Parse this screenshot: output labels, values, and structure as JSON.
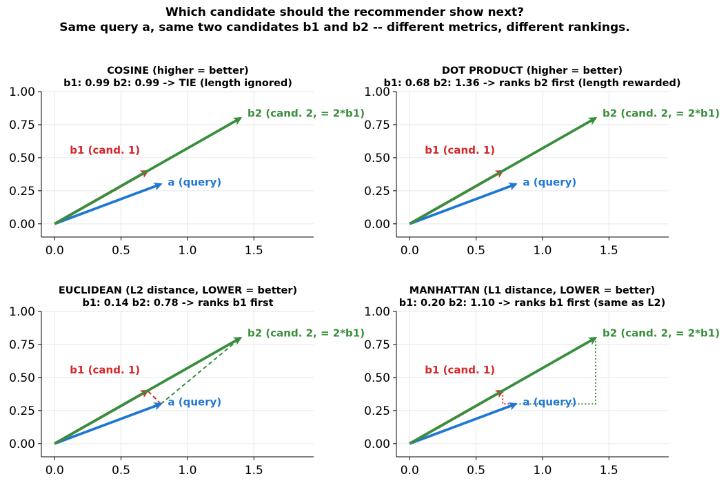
{
  "figure": {
    "suptitle_line1": "Which candidate should the recommender show next?",
    "suptitle_line2": "Same query a, same two candidates b1 and b2 -- different metrics, different rankings."
  },
  "colors": {
    "query": "#1f77d4",
    "b1": "#d62728",
    "b2": "#388e3c",
    "grid": "#e6e6e6",
    "axis": "#000000"
  },
  "chart_data": [
    {
      "type": "line",
      "title_line1": "COSINE   (higher = better)",
      "title_line2": "b1: 0.99    b2: 0.99    ->   TIE  (length ignored)",
      "xlim": [
        -0.1,
        1.95
      ],
      "ylim": [
        -0.1,
        1.0
      ],
      "xticks": [
        "0.0",
        "0.5",
        "1.0",
        "1.5"
      ],
      "xtick_values": [
        0,
        0.5,
        1.0,
        1.5
      ],
      "yticks": [
        "0.00",
        "0.25",
        "0.50",
        "0.75",
        "1.00"
      ],
      "ytick_values": [
        0,
        0.25,
        0.5,
        0.75,
        1.0
      ],
      "grid": true,
      "vectors": [
        {
          "name": "a",
          "label": "a  (query)",
          "x": 0.8,
          "y": 0.3,
          "color_key": "query"
        },
        {
          "name": "b1",
          "label": "b1  (cand. 1)",
          "x": 0.7,
          "y": 0.4,
          "color_key": "b1"
        },
        {
          "name": "b2",
          "label": "b2  (cand. 2, = 2*b1)",
          "x": 1.4,
          "y": 0.8,
          "color_key": "b2"
        }
      ],
      "overlays": []
    },
    {
      "type": "line",
      "title_line1": "DOT PRODUCT   (higher = better)",
      "title_line2": "b1: 0.68    b2: 1.36    ->   ranks b2 first  (length rewarded)",
      "xlim": [
        -0.1,
        1.95
      ],
      "ylim": [
        -0.1,
        1.0
      ],
      "xticks": [
        "0.0",
        "0.5",
        "1.0",
        "1.5"
      ],
      "xtick_values": [
        0,
        0.5,
        1.0,
        1.5
      ],
      "yticks": [
        "0.00",
        "0.25",
        "0.50",
        "0.75",
        "1.00"
      ],
      "ytick_values": [
        0,
        0.25,
        0.5,
        0.75,
        1.0
      ],
      "grid": true,
      "vectors": [
        {
          "name": "a",
          "label": "a  (query)",
          "x": 0.8,
          "y": 0.3,
          "color_key": "query"
        },
        {
          "name": "b1",
          "label": "b1  (cand. 1)",
          "x": 0.7,
          "y": 0.4,
          "color_key": "b1"
        },
        {
          "name": "b2",
          "label": "b2  (cand. 2, = 2*b1)",
          "x": 1.4,
          "y": 0.8,
          "color_key": "b2"
        }
      ],
      "overlays": []
    },
    {
      "type": "line",
      "title_line1": "EUCLIDEAN  (L2 distance, LOWER = better)",
      "title_line2": "b1: 0.14    b2: 0.78    ->   ranks b1 first",
      "xlim": [
        -0.1,
        1.95
      ],
      "ylim": [
        -0.1,
        1.0
      ],
      "xticks": [
        "0.0",
        "0.5",
        "1.0",
        "1.5"
      ],
      "xtick_values": [
        0,
        0.5,
        1.0,
        1.5
      ],
      "yticks": [
        "0.00",
        "0.25",
        "0.50",
        "0.75",
        "1.00"
      ],
      "ytick_values": [
        0,
        0.25,
        0.5,
        0.75,
        1.0
      ],
      "grid": true,
      "vectors": [
        {
          "name": "a",
          "label": "a  (query)",
          "x": 0.8,
          "y": 0.3,
          "color_key": "query"
        },
        {
          "name": "b1",
          "label": "b1  (cand. 1)",
          "x": 0.7,
          "y": 0.4,
          "color_key": "b1"
        },
        {
          "name": "b2",
          "label": "b2  (cand. 2, = 2*b1)",
          "x": 1.4,
          "y": 0.8,
          "color_key": "b2"
        }
      ],
      "overlays": [
        {
          "name": "l2-to-b1",
          "color_key": "b1",
          "style": "dashed",
          "points": [
            [
              0.8,
              0.3
            ],
            [
              0.7,
              0.4
            ]
          ]
        },
        {
          "name": "l2-to-b2",
          "color_key": "b2",
          "style": "dashed",
          "points": [
            [
              0.8,
              0.3
            ],
            [
              1.4,
              0.8
            ]
          ]
        }
      ]
    },
    {
      "type": "line",
      "title_line1": "MANHATTAN  (L1 distance, LOWER = better)",
      "title_line2": "b1: 0.20    b2: 1.10    ->   ranks b1 first  (same as L2)",
      "xlim": [
        -0.1,
        1.95
      ],
      "ylim": [
        -0.1,
        1.0
      ],
      "xticks": [
        "0.0",
        "0.5",
        "1.0",
        "1.5"
      ],
      "xtick_values": [
        0,
        0.5,
        1.0,
        1.5
      ],
      "yticks": [
        "0.00",
        "0.25",
        "0.50",
        "0.75",
        "1.00"
      ],
      "ytick_values": [
        0,
        0.25,
        0.5,
        0.75,
        1.0
      ],
      "grid": true,
      "vectors": [
        {
          "name": "a",
          "label": "a  (query)",
          "x": 0.8,
          "y": 0.3,
          "color_key": "query"
        },
        {
          "name": "b1",
          "label": "b1  (cand. 1)",
          "x": 0.7,
          "y": 0.4,
          "color_key": "b1"
        },
        {
          "name": "b2",
          "label": "b2  (cand. 2, = 2*b1)",
          "x": 1.4,
          "y": 0.8,
          "color_key": "b2"
        }
      ],
      "overlays": [
        {
          "name": "l1-to-b1",
          "color_key": "b1",
          "style": "dotted",
          "points": [
            [
              0.8,
              0.3
            ],
            [
              0.7,
              0.3
            ],
            [
              0.7,
              0.4
            ]
          ]
        },
        {
          "name": "l1-to-b2",
          "color_key": "b2",
          "style": "dotted",
          "points": [
            [
              0.8,
              0.3
            ],
            [
              1.4,
              0.3
            ],
            [
              1.4,
              0.8
            ]
          ]
        }
      ]
    }
  ]
}
